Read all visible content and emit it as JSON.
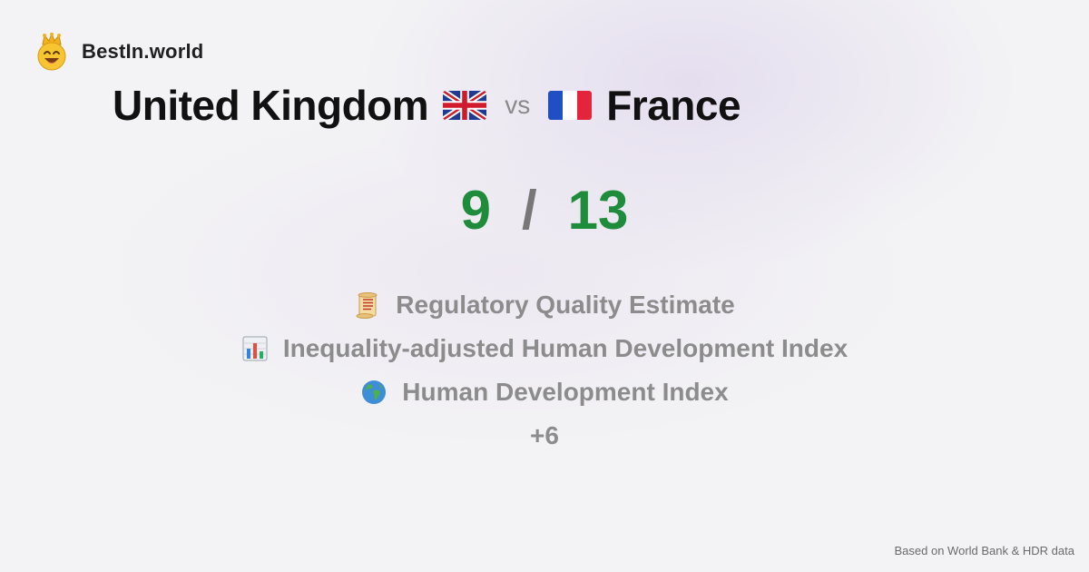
{
  "brand": {
    "name": "BestIn.world",
    "logo_icon": "crowned-smiley-icon"
  },
  "title": {
    "country_a": "United Kingdom",
    "flag_a_icon": "uk-flag-icon",
    "vs": "vs",
    "flag_b_icon": "france-flag-icon",
    "country_b": "France"
  },
  "score": {
    "left": "9",
    "separator": "/",
    "right": "13",
    "color": "#1e8c3a"
  },
  "metrics": [
    {
      "icon": "scroll-icon",
      "label": "Regulatory Quality Estimate"
    },
    {
      "icon": "bar-chart-icon",
      "label": "Inequality-adjusted Human Development Index"
    },
    {
      "icon": "globe-icon",
      "label": "Human Development Index"
    }
  ],
  "more": "+6",
  "footer": "Based on World Bank & HDR data"
}
